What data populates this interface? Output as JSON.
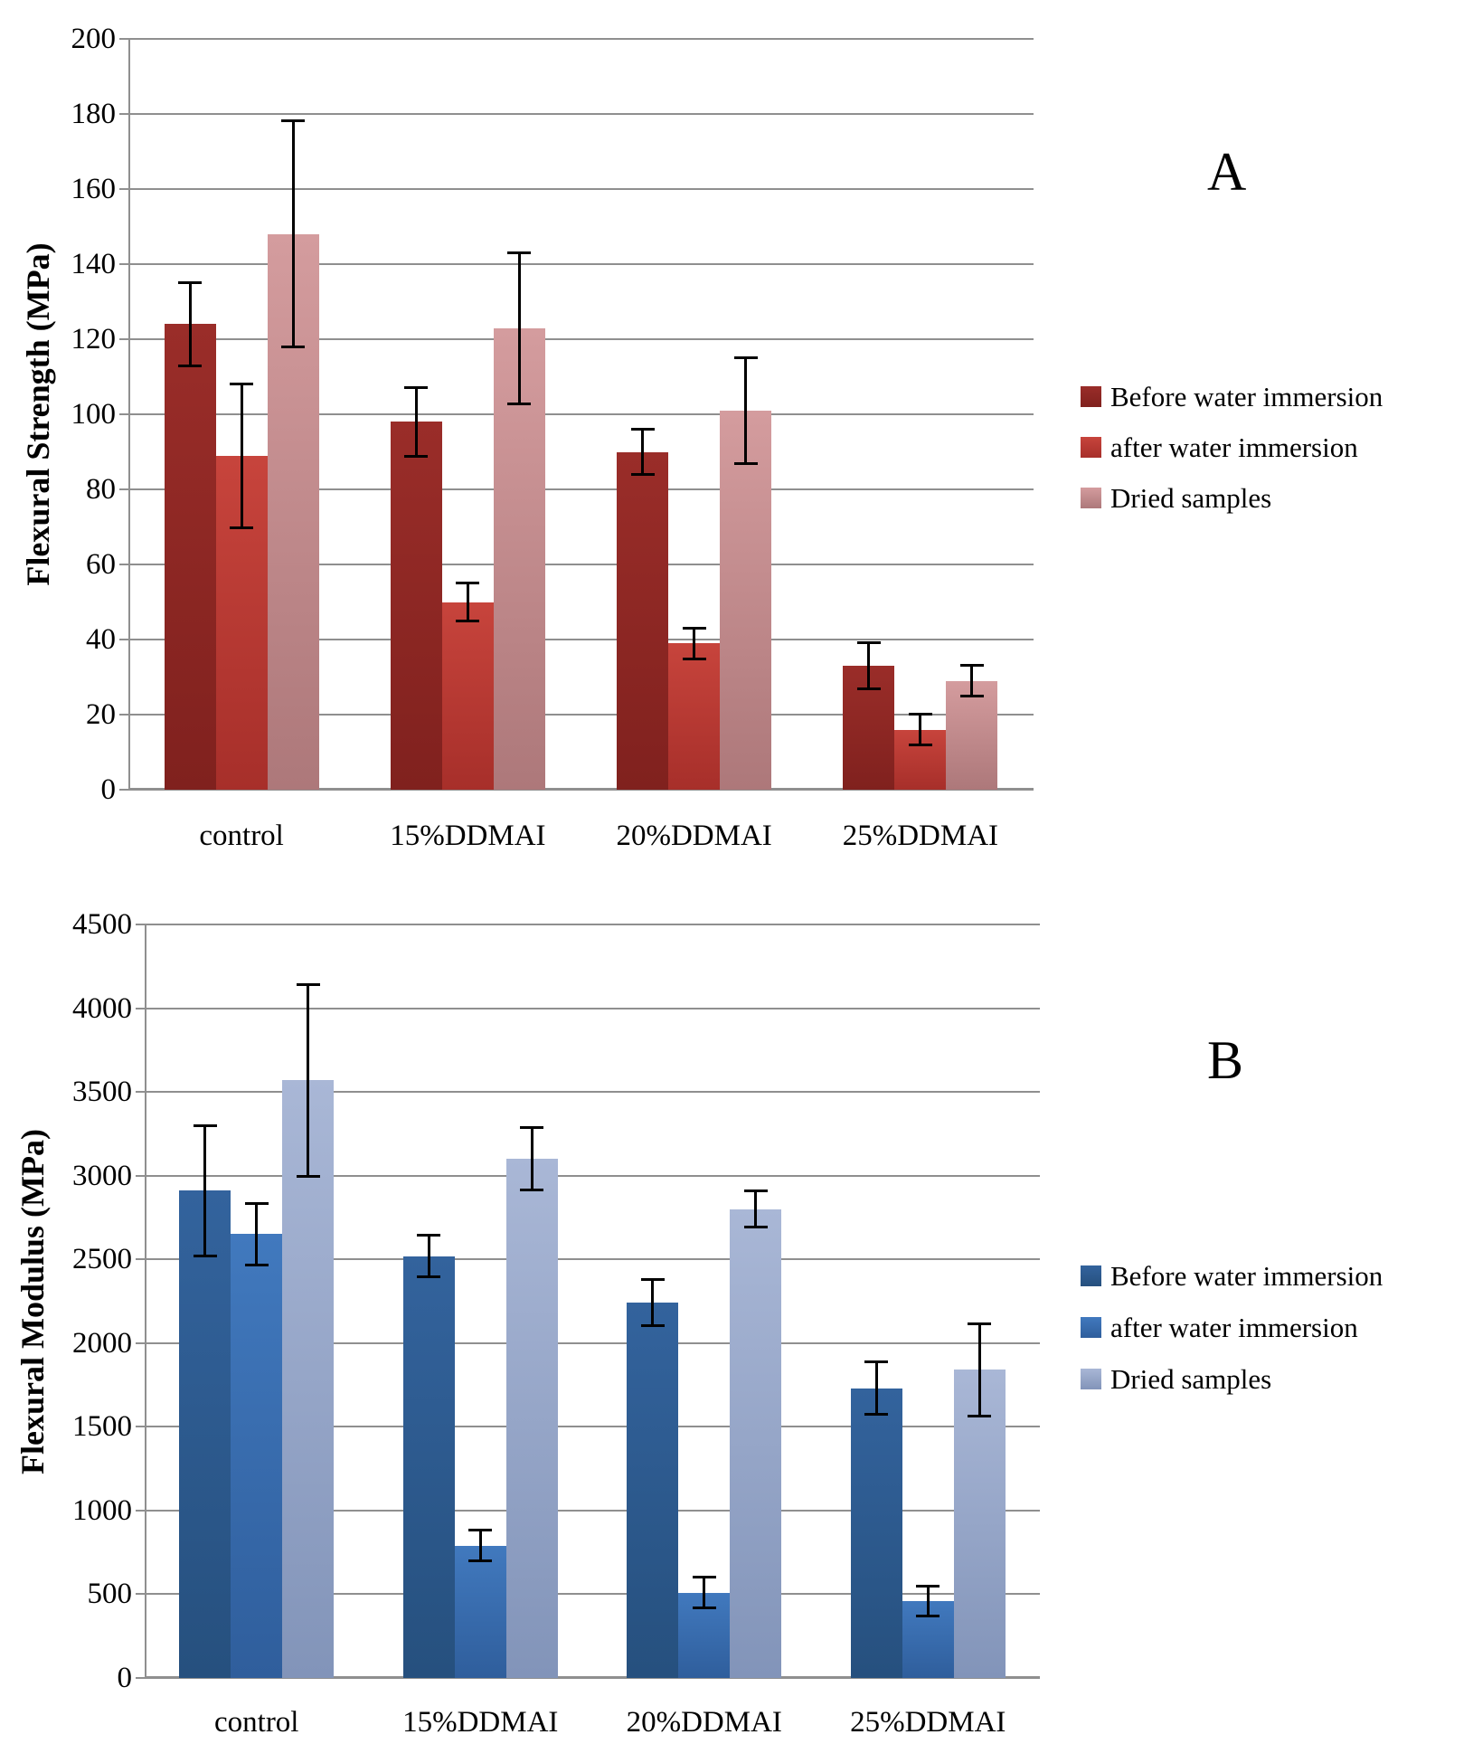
{
  "page": {
    "background": "#ffffff"
  },
  "chart_data": [
    {
      "type": "bar",
      "panel_label": "A",
      "ylabel": "Flexural Strength (MPa)",
      "ylim": [
        0,
        200
      ],
      "ytick_step": 20,
      "ytick_labels": [
        "0",
        "20",
        "40",
        "60",
        "80",
        "100",
        "120",
        "140",
        "160",
        "180",
        "200"
      ],
      "categories": [
        "control",
        "15%DDMAI",
        "20%DDMAI",
        "25%DDMAI"
      ],
      "series": [
        {
          "name": "Before water immersion",
          "color": "#9a2d29",
          "color_dark": "#80211e",
          "values": [
            124,
            98,
            90,
            33
          ],
          "errors": [
            11,
            9,
            6,
            6
          ]
        },
        {
          "name": "after water immersion",
          "color": "#c7443c",
          "color_dark": "#a72f2a",
          "values": [
            89,
            50,
            39,
            16
          ],
          "errors": [
            19,
            5,
            4,
            4
          ]
        },
        {
          "name": "Dried samples",
          "color": "#d49c9e",
          "color_dark": "#ad787a",
          "values": [
            148,
            123,
            101,
            29
          ],
          "errors": [
            30,
            20,
            14,
            4
          ]
        }
      ],
      "grid": true,
      "legend_position": "right",
      "error_bar_color": "#000000",
      "axis_color": "#8f8f8f"
    },
    {
      "type": "bar",
      "panel_label": "B",
      "ylabel": "Flexural Modulus (MPa)",
      "ylim": [
        0,
        4500
      ],
      "ytick_step": 500,
      "ytick_labels": [
        "0",
        "500",
        "1000",
        "1500",
        "2000",
        "2500",
        "3000",
        "3500",
        "4000",
        "4500"
      ],
      "categories": [
        "control",
        "15%DDMAI",
        "20%DDMAI",
        "25%DDMAI"
      ],
      "series": [
        {
          "name": "Before water immersion",
          "color": "#33639d",
          "color_dark": "#26507e",
          "values": [
            2910,
            2520,
            2240,
            1730
          ],
          "errors": [
            385,
            120,
            135,
            155
          ]
        },
        {
          "name": "after water immersion",
          "color": "#4179be",
          "color_dark": "#2f5e9c",
          "values": [
            2650,
            790,
            510,
            460
          ],
          "errors": [
            180,
            90,
            90,
            85
          ]
        },
        {
          "name": "Dried samples",
          "color": "#a9b7d6",
          "color_dark": "#8294b9",
          "values": [
            3570,
            3100,
            2800,
            1840
          ],
          "errors": [
            570,
            185,
            105,
            275
          ]
        }
      ],
      "grid": true,
      "legend_position": "right",
      "error_bar_color": "#000000",
      "axis_color": "#8f8f8f"
    }
  ]
}
